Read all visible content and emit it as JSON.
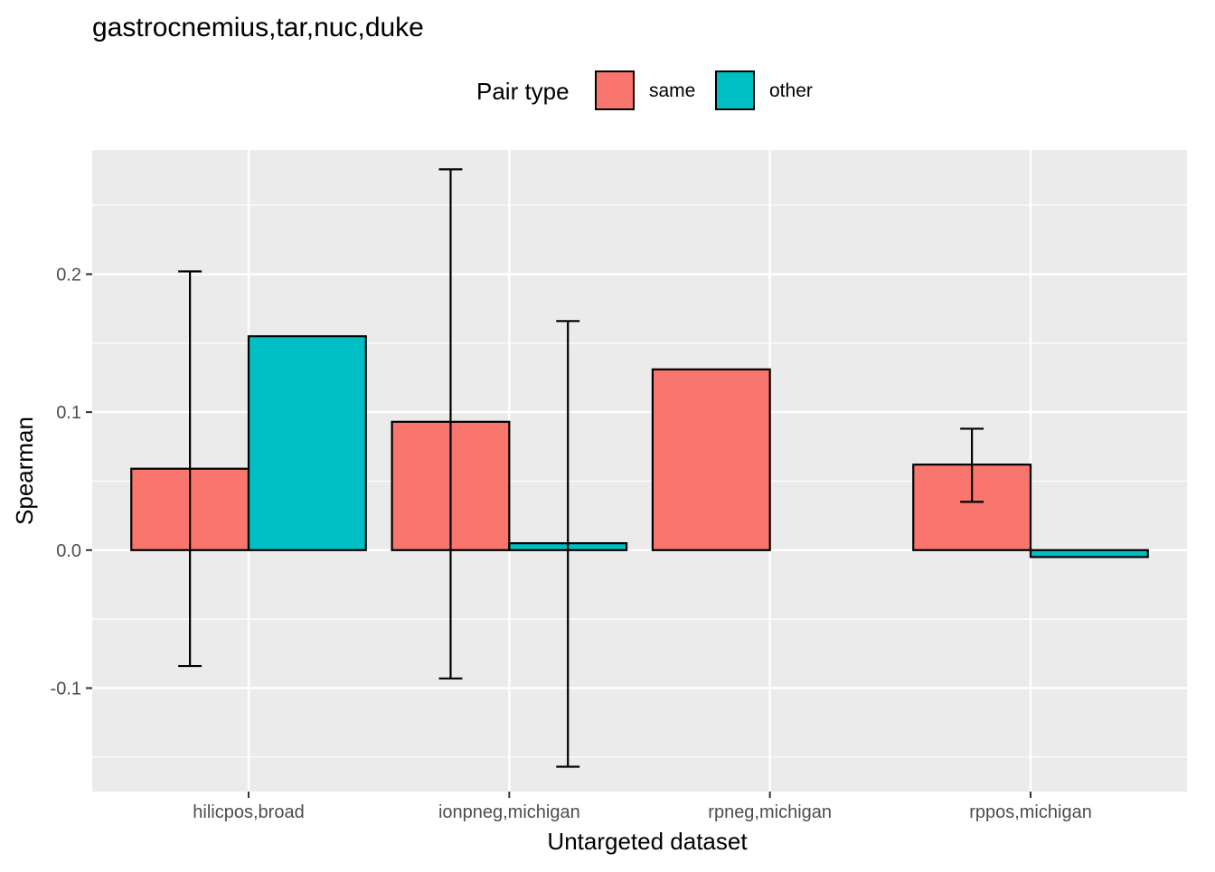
{
  "chart_data": {
    "type": "bar",
    "title": "gastrocnemius,tar,nuc,duke",
    "xlabel": "Untargeted dataset",
    "ylabel": "Spearman",
    "categories": [
      "hilicpos,broad",
      "ionpneg,michigan",
      "rpneg,michigan",
      "rppos,michigan"
    ],
    "ylim": [
      -0.175,
      0.29
    ],
    "yticks": [
      -0.1,
      0.0,
      0.1,
      0.2
    ],
    "ytick_labels": [
      "-0.1",
      "0.0",
      "0.1",
      "0.2"
    ],
    "grid": true,
    "legend": {
      "title": "Pair type",
      "position": "top"
    },
    "series": [
      {
        "name": "same",
        "color": "#F8766D",
        "values": [
          0.059,
          0.093,
          0.131,
          0.062
        ],
        "err_low": [
          -0.084,
          -0.093,
          null,
          0.035
        ],
        "err_high": [
          0.202,
          0.276,
          null,
          0.088
        ]
      },
      {
        "name": "other",
        "color": "#00BFC4",
        "values": [
          0.155,
          0.005,
          null,
          -0.005
        ],
        "err_low": [
          null,
          -0.157,
          null,
          null
        ],
        "err_high": [
          null,
          0.166,
          null,
          null
        ]
      }
    ]
  }
}
